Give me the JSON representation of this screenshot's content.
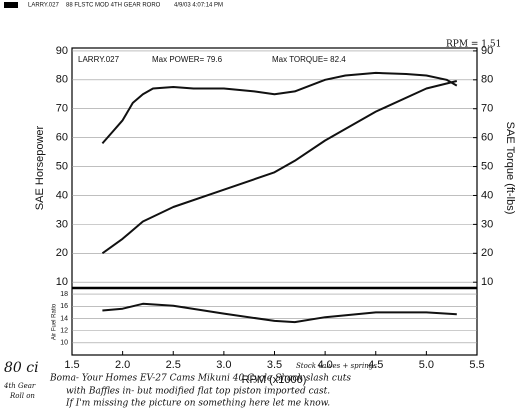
{
  "header": {
    "file": "LARRY.027",
    "title": "88 FLSTC MOD 4TH GEAR RORO",
    "date": "4/9/03 4:07:14 PM",
    "rpm_factor": "RPM = 1.51"
  },
  "chart_data": [
    {
      "type": "line",
      "run": "LARRY.027",
      "max_power": "Max POWER= 79.6",
      "max_torque": "Max TORQUE= 82.4",
      "ylabel": "SAE Horsepower",
      "y2label": "SAE Torque (ft-lbs)",
      "xlim": [
        1.5,
        5.5
      ],
      "ylim": [
        8,
        91
      ],
      "y2lim": [
        8,
        91
      ],
      "yticks": [
        10,
        20,
        30,
        40,
        50,
        60,
        70,
        80,
        90
      ],
      "y2ticks": [
        10,
        20,
        30,
        40,
        50,
        60,
        70,
        80,
        90
      ],
      "grid": true,
      "series": [
        {
          "color": "#111111",
          "axis": "y2",
          "x": [
            1.8,
            1.9,
            2.0,
            2.1,
            2.2,
            2.3,
            2.5,
            2.7,
            3.0,
            3.3,
            3.5,
            3.7,
            4.0,
            4.2,
            4.5,
            4.8,
            5.0,
            5.2,
            5.3
          ],
          "values": [
            58,
            62,
            66,
            72,
            75,
            77,
            77.5,
            77,
            77,
            76,
            75,
            76,
            80,
            81.5,
            82.4,
            82,
            81.5,
            80,
            78
          ]
        },
        {
          "color": "#111111",
          "axis": "y",
          "x": [
            1.8,
            2.0,
            2.2,
            2.5,
            3.0,
            3.5,
            3.7,
            4.0,
            4.5,
            5.0,
            5.3
          ],
          "values": [
            20,
            25,
            31,
            36,
            42,
            48,
            52,
            59,
            69,
            77,
            79.6
          ]
        }
      ]
    },
    {
      "type": "line",
      "ylabel": "Air Fuel Ratio",
      "xlabel": "RPM (x1000)",
      "xlim": [
        1.5,
        5.5
      ],
      "ylim": [
        8,
        19
      ],
      "yticks": [
        10,
        12,
        14,
        16,
        18
      ],
      "grid": true,
      "xticks": [
        1.5,
        {
          "value": 2,
          "label": "2.0"
        },
        2.5,
        {
          "value": 3,
          "label": "3.0"
        },
        3.5,
        {
          "value": 4,
          "label": "4.0"
        },
        4.5,
        {
          "value": 5,
          "label": "5.0"
        },
        5.5
      ],
      "series": [
        {
          "color": "#111111",
          "x": [
            1.8,
            2.0,
            2.2,
            2.5,
            3.0,
            3.5,
            3.7,
            4.0,
            4.5,
            5.0,
            5.3
          ],
          "values": [
            15.3,
            15.6,
            16.4,
            16.1,
            14.8,
            13.6,
            13.4,
            14.2,
            15.0,
            15.0,
            14.7
          ]
        }
      ]
    }
  ],
  "notes": {
    "engine": "80 ci",
    "gear": "4th Gear",
    "roll": "Roll on",
    "valves": "Stock valves + springs",
    "line1": "Boma- Your Homes EV-27 Cams Mikuni 40 Cycle Shack slash cuts",
    "line2": "with Baffles in- but modified flat top piston imported cast.",
    "line3": "If I'm missing the picture on something here let me know."
  }
}
